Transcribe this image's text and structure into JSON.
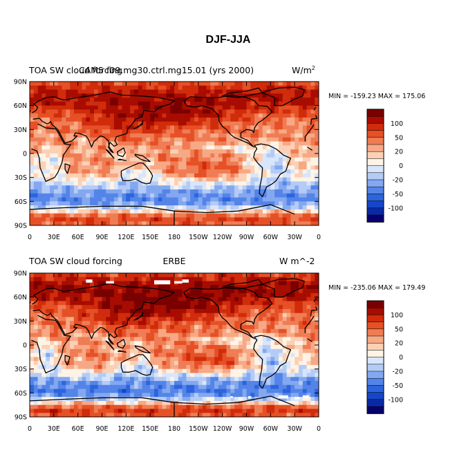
{
  "figure": {
    "title": "DJF-JJA"
  },
  "chart_data": [
    {
      "type": "heatmap",
      "left_label": "TOA SW cloud forcing",
      "center_label": "CAM5 f09.mg30.ctrl.mg15.01 (yrs 2000)",
      "units_text": "W/m",
      "units_sup": "2",
      "minmax_text": "MIN = -159.23 MAX = 175.06",
      "min": -159.23,
      "max": 175.06,
      "x_ticks": [
        "0",
        "30E",
        "60E",
        "90E",
        "120E",
        "150E",
        "180",
        "150W",
        "120W",
        "90W",
        "60W",
        "30W",
        "0"
      ],
      "y_ticks": [
        "90N",
        "60N",
        "30N",
        "0",
        "30S",
        "60S",
        "90S"
      ],
      "colorbar_labels": [
        "100",
        "50",
        "20",
        "0",
        "-20",
        "-50",
        "-100"
      ],
      "has_missing_data": false
    },
    {
      "type": "heatmap",
      "left_label": "TOA SW cloud forcing",
      "center_label": "ERBE",
      "units_text": "W m^-2",
      "units_sup": "",
      "minmax_text": "MIN = -235.06 MAX = 179.49",
      "min": -235.06,
      "max": 179.49,
      "x_ticks": [
        "0",
        "30E",
        "60E",
        "90E",
        "120E",
        "150E",
        "180",
        "150W",
        "120W",
        "90W",
        "60W",
        "30W",
        "0"
      ],
      "y_ticks": [
        "90N",
        "60N",
        "30N",
        "0",
        "30S",
        "60S",
        "90S"
      ],
      "colorbar_labels": [
        "100",
        "50",
        "20",
        "0",
        "-20",
        "-50",
        "-100"
      ],
      "has_missing_data": true
    }
  ],
  "colors": {
    "palette": [
      "#08006e",
      "#0a2aa5",
      "#1646c8",
      "#2c64dc",
      "#5484e8",
      "#84a8f0",
      "#b4cbf6",
      "#d8e6fb",
      "#fff3e6",
      "#fbd0b4",
      "#f7a884",
      "#f07c54",
      "#e65026",
      "#d02c0c",
      "#a80c00",
      "#7a0000"
    ]
  }
}
